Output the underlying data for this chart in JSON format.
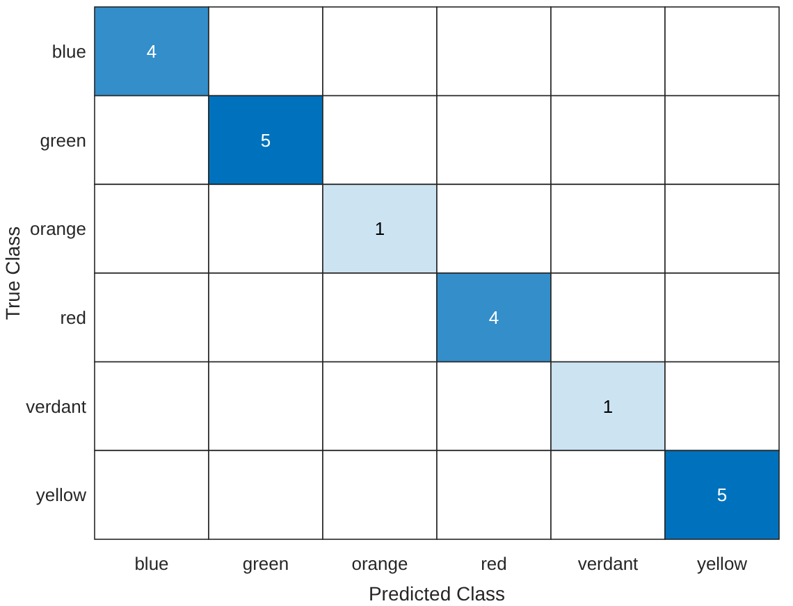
{
  "chart_data": {
    "type": "heatmap",
    "xlabel": "Predicted Class",
    "ylabel": "True Class",
    "color": "#0072bd",
    "categories": [
      "blue",
      "green",
      "orange",
      "red",
      "verdant",
      "yellow"
    ],
    "y_categories": [
      "blue",
      "green",
      "orange",
      "red",
      "verdant",
      "yellow"
    ],
    "cells": [
      [
        4,
        null,
        null,
        null,
        null,
        null
      ],
      [
        null,
        5,
        null,
        null,
        null,
        null
      ],
      [
        null,
        null,
        1,
        null,
        null,
        null
      ],
      [
        null,
        null,
        null,
        4,
        null,
        null
      ],
      [
        null,
        null,
        null,
        null,
        1,
        null
      ],
      [
        null,
        null,
        null,
        null,
        null,
        5
      ]
    ],
    "data_labels": true
  }
}
